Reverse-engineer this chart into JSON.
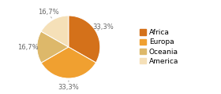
{
  "labels": [
    "Africa",
    "Europa",
    "Oceania",
    "America"
  ],
  "values": [
    33.3,
    33.3,
    16.7,
    16.7
  ],
  "colors": [
    "#d4711a",
    "#f0a030",
    "#ddb86a",
    "#f5e0b8"
  ],
  "pct_labels": [
    "33,3%",
    "33,3%",
    "16,7%",
    "16,7%"
  ],
  "figsize": [
    2.8,
    1.2
  ],
  "dpi": 100,
  "startangle": 90,
  "pctdistance": 1.28,
  "label_fontsize": 6.0,
  "legend_fontsize": 6.5
}
